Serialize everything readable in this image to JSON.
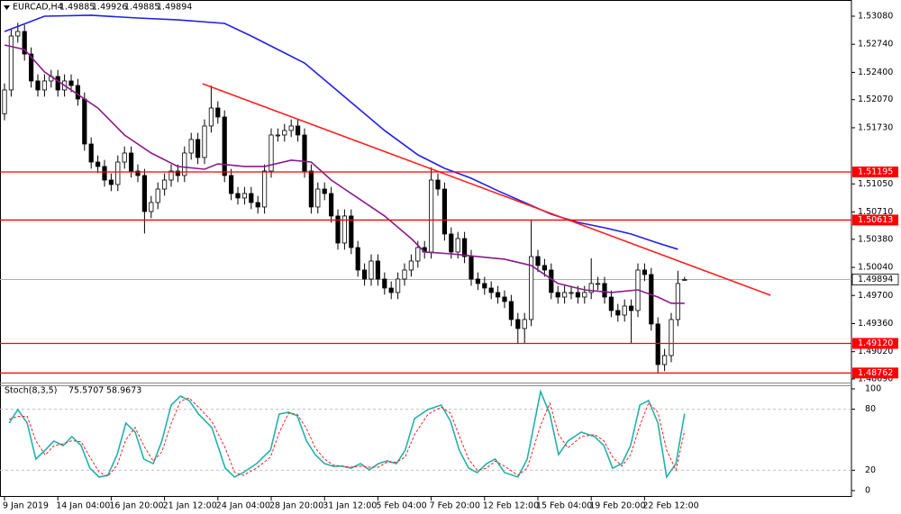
{
  "chart_data": [
    {
      "type": "candlestick",
      "title": "EURCAD,H4",
      "categories": [
        "9 Jan 2019",
        null,
        null,
        null,
        null,
        null,
        null,
        null,
        "14 Jan 04:00",
        null,
        null,
        null,
        null,
        null,
        null,
        null,
        "16 Jan 20:00",
        null,
        null,
        null,
        null,
        null,
        null,
        null,
        "21 Jan 12:00",
        null,
        null,
        null,
        null,
        null,
        null,
        null,
        "24 Jan 04:00",
        null,
        null,
        null,
        null,
        null,
        null,
        null,
        "28 Jan 20:00",
        null,
        null,
        null,
        null,
        null,
        null,
        null,
        "31 Jan 12:00",
        null,
        null,
        null,
        null,
        null,
        null,
        null,
        "5 Feb 04:00",
        null,
        null,
        null,
        null,
        null,
        null,
        null,
        "7 Feb 20:00",
        null,
        null,
        null,
        null,
        null,
        null,
        null,
        "12 Feb 12:00",
        null,
        null,
        null,
        null,
        null,
        null,
        null,
        "15 Feb 04:00",
        null,
        null,
        null,
        null,
        null,
        null,
        null,
        "19 Feb 20:00",
        null,
        null,
        null,
        null,
        null,
        null,
        null,
        "22 Feb 12:00",
        null,
        null,
        null,
        null,
        null,
        null
      ],
      "open": [
        1.519,
        1.52187,
        1.5284,
        1.52895,
        1.52622,
        1.52296,
        1.52187,
        1.52296,
        1.5235,
        1.52187,
        1.52296,
        1.52241,
        1.52078,
        1.51533,
        1.51315,
        1.51261,
        1.51097,
        1.51043,
        1.51315,
        1.51424,
        1.51206,
        1.51152,
        1.50716,
        1.50825,
        1.50988,
        1.51097,
        1.51206,
        1.51152,
        1.51424,
        1.51588,
        1.5137,
        1.51751,
        1.51969,
        1.5186,
        1.51152,
        1.50934,
        1.5088,
        1.50934,
        1.50825,
        1.50771,
        1.51206,
        1.51642,
        1.51642,
        1.51697,
        1.51751,
        1.51642,
        1.51206,
        1.50771,
        1.50988,
        1.50934,
        1.50662,
        1.50335,
        1.50662,
        1.5028,
        1.50008,
        1.49899,
        1.50117,
        1.49899,
        1.4979,
        1.49736,
        1.49899,
        1.50008,
        1.50117,
        1.5028,
        1.50226,
        1.51097,
        1.50988,
        1.50444,
        1.50226,
        1.50389,
        1.50171,
        1.49899,
        1.49845,
        1.4979,
        1.49736,
        1.49681,
        1.49627,
        1.49409,
        1.493,
        1.49409,
        1.50171,
        1.50063,
        1.50008,
        1.49736,
        1.49681,
        1.49736,
        1.49736,
        1.49681,
        1.49736,
        1.49845,
        1.49845,
        1.49681,
        1.49518,
        1.49463,
        1.49572,
        1.49518,
        1.50008,
        1.49954,
        1.49355,
        1.48864,
        1.48973,
        1.49409,
        1.49885
      ],
      "high": [
        1.52267,
        1.5292,
        1.53,
        1.52975,
        1.52702,
        1.52376,
        1.52376,
        1.5243,
        1.5243,
        1.52376,
        1.52376,
        1.52321,
        1.52158,
        1.51613,
        1.51395,
        1.51341,
        1.51177,
        1.51395,
        1.51504,
        1.51504,
        1.51286,
        1.51232,
        1.50905,
        1.51068,
        1.51177,
        1.51286,
        1.51286,
        1.51504,
        1.51668,
        1.51668,
        1.51831,
        1.5224,
        1.52049,
        1.5194,
        1.51232,
        1.51014,
        1.51014,
        1.51014,
        1.50905,
        1.51286,
        1.51722,
        1.51722,
        1.51777,
        1.51831,
        1.51831,
        1.51722,
        1.51286,
        1.51068,
        1.51068,
        1.51014,
        1.50742,
        1.50742,
        1.50742,
        1.5036,
        1.50088,
        1.50197,
        1.50197,
        1.49979,
        1.4987,
        1.49979,
        1.50088,
        1.50197,
        1.5036,
        1.5036,
        1.5125,
        1.51177,
        1.51068,
        1.50524,
        1.50469,
        1.50469,
        1.50251,
        1.49979,
        1.49925,
        1.4987,
        1.49816,
        1.49761,
        1.49707,
        1.49489,
        1.49489,
        1.5061,
        1.50251,
        1.50143,
        1.50088,
        1.49816,
        1.49816,
        1.49816,
        1.49816,
        1.49816,
        1.5015,
        1.49925,
        1.49925,
        1.49761,
        1.49598,
        1.49652,
        1.49652,
        1.50088,
        1.50088,
        1.50034,
        1.49435,
        1.49053,
        1.49489,
        1.5,
        1.49926
      ],
      "low": [
        1.5182,
        1.52107,
        1.5276,
        1.52542,
        1.52216,
        1.52107,
        1.52107,
        1.52216,
        1.52107,
        1.52107,
        1.52161,
        1.51998,
        1.51453,
        1.51235,
        1.51181,
        1.51017,
        1.50963,
        1.50963,
        1.51235,
        1.51126,
        1.51072,
        1.5045,
        1.50636,
        1.50745,
        1.50908,
        1.51017,
        1.51072,
        1.51072,
        1.51344,
        1.5129,
        1.5129,
        1.51671,
        1.5178,
        1.51072,
        1.50854,
        1.508,
        1.508,
        1.50745,
        1.50691,
        1.50691,
        1.51126,
        1.51562,
        1.51562,
        1.51617,
        1.51562,
        1.51126,
        1.50691,
        1.50691,
        1.50854,
        1.50582,
        1.50255,
        1.50255,
        1.502,
        1.49928,
        1.49819,
        1.49819,
        1.49819,
        1.4971,
        1.49656,
        1.49656,
        1.49819,
        1.49928,
        1.50037,
        1.50146,
        1.50146,
        1.50908,
        1.50364,
        1.50146,
        1.50146,
        1.50091,
        1.49819,
        1.49765,
        1.4971,
        1.49656,
        1.49601,
        1.49547,
        1.49329,
        1.4912,
        1.4912,
        1.49329,
        1.49983,
        1.49928,
        1.49656,
        1.49601,
        1.49601,
        1.49656,
        1.49601,
        1.49601,
        1.49656,
        1.49765,
        1.49601,
        1.49438,
        1.49383,
        1.49383,
        1.4912,
        1.49438,
        1.49874,
        1.49275,
        1.48762,
        1.48784,
        1.48893,
        1.49329,
        1.49885
      ],
      "close": [
        1.52187,
        1.5284,
        1.52895,
        1.52622,
        1.52296,
        1.52187,
        1.52296,
        1.5235,
        1.52187,
        1.52296,
        1.52241,
        1.52078,
        1.51533,
        1.51315,
        1.51261,
        1.51097,
        1.51043,
        1.51315,
        1.51424,
        1.51206,
        1.51152,
        1.50716,
        1.50825,
        1.50988,
        1.51097,
        1.51206,
        1.51152,
        1.51424,
        1.51588,
        1.5137,
        1.51751,
        1.51969,
        1.5186,
        1.51152,
        1.50934,
        1.5088,
        1.50934,
        1.50825,
        1.50771,
        1.51206,
        1.51642,
        1.51642,
        1.51697,
        1.51751,
        1.51642,
        1.51206,
        1.50771,
        1.50988,
        1.50934,
        1.50662,
        1.50335,
        1.50662,
        1.5028,
        1.50008,
        1.49899,
        1.50117,
        1.49899,
        1.4979,
        1.49736,
        1.49899,
        1.50008,
        1.50117,
        1.5028,
        1.50226,
        1.51097,
        1.50988,
        1.50444,
        1.50226,
        1.50389,
        1.50171,
        1.49899,
        1.49845,
        1.4979,
        1.49736,
        1.49681,
        1.49627,
        1.49409,
        1.493,
        1.49409,
        1.50171,
        1.50063,
        1.50008,
        1.49736,
        1.49681,
        1.49736,
        1.49736,
        1.49681,
        1.49736,
        1.49845,
        1.49845,
        1.49681,
        1.49518,
        1.49463,
        1.49572,
        1.49518,
        1.50008,
        1.49954,
        1.49355,
        1.48864,
        1.48973,
        1.49409,
        1.49845,
        1.49894
      ],
      "series": [
        {
          "color": "#2020e8",
          "x": [
            0,
            6,
            13,
            20,
            26,
            33,
            37,
            41,
            45,
            49,
            53,
            57,
            62,
            66,
            70,
            74,
            78,
            82,
            86,
            90,
            94,
            98,
            101
          ],
          "values": [
            1.52895,
            1.5308,
            1.53091,
            1.53058,
            1.53036,
            1.52993,
            1.5284,
            1.52677,
            1.52513,
            1.52241,
            1.51969,
            1.51697,
            1.51402,
            1.51239,
            1.51119,
            1.50967,
            1.50825,
            1.50683,
            1.50585,
            1.5052,
            1.50444,
            1.50335,
            1.50259
          ]
        },
        {
          "color": "#8b1a8b",
          "x": [
            0,
            3,
            6,
            10,
            14,
            18,
            22,
            26,
            30,
            32,
            36,
            39,
            43,
            46,
            49,
            53,
            57,
            61,
            63,
            67,
            71,
            75,
            79,
            83,
            87,
            91,
            95,
            98,
            100,
            102
          ],
          "values": [
            1.52731,
            1.52677,
            1.52405,
            1.52187,
            1.51969,
            1.51642,
            1.51424,
            1.51261,
            1.51228,
            1.51293,
            1.51261,
            1.51261,
            1.51337,
            1.51315,
            1.51097,
            1.5088,
            1.50662,
            1.50389,
            1.50226,
            1.50204,
            1.50171,
            1.50139,
            1.50063,
            1.49845,
            1.49768,
            1.49736,
            1.49768,
            1.49681,
            1.49605,
            1.49605
          ]
        },
        {
          "color": "#ff2020",
          "x": [
            29.7,
            114.9
          ],
          "values": [
            1.52263,
            1.49703
          ]
        }
      ],
      "levels": [
        1.51195,
        1.50613,
        {
          "value": 1.4912,
          "label": "1.49120"
        },
        1.48762
      ],
      "level_color": "#ff0000",
      "ylim": [
        1.48646,
        1.53276
      ],
      "yticks": [
        {
          "value": 1.5308,
          "label": "1.53080"
        },
        {
          "value": 1.5274,
          "label": "1.52740"
        },
        {
          "value": 1.524,
          "label": "1.52400"
        },
        {
          "value": 1.5207,
          "label": "1.52070"
        },
        {
          "value": 1.5173,
          "label": "1.51730"
        },
        {
          "value": 1.5105,
          "label": "1.51050"
        },
        {
          "value": 1.5071,
          "label": "1.50710"
        },
        {
          "value": 1.5038,
          "label": "1.50380"
        },
        {
          "value": 1.5004,
          "label": "1.50040"
        },
        {
          "value": 1.497,
          "label": "1.49700"
        },
        {
          "value": 1.4936,
          "label": "1.49360"
        },
        {
          "value": 1.4902,
          "label": "1.49020"
        },
        {
          "value": 1.4869,
          "label": "1.48690"
        }
      ]
    },
    {
      "type": "line",
      "title": "Stoch(8,3,5)",
      "x": [
        0.7,
        2.0,
        3.4,
        4.7,
        6.1,
        7.4,
        8.8,
        10.1,
        11.5,
        12.8,
        14.2,
        15.5,
        16.9,
        18.2,
        19.6,
        20.9,
        22.3,
        23.6,
        25.0,
        26.4,
        27.7,
        29.1,
        31.1,
        33.1,
        34.5,
        35.8,
        37.8,
        39.9,
        41.2,
        42.6,
        43.9,
        45.3,
        46.6,
        48.0,
        49.3,
        50.7,
        52.0,
        53.4,
        54.7,
        56.1,
        57.4,
        58.8,
        60.1,
        61.5,
        63.5,
        65.5,
        66.9,
        68.2,
        69.6,
        70.9,
        72.3,
        73.6,
        75.0,
        77.0,
        78.4,
        80.4,
        81.8,
        83.1,
        84.5,
        86.5,
        88.5,
        89.9,
        91.2,
        92.6,
        93.9,
        95.3,
        96.6,
        98.0,
        99.3,
        100.7,
        102.0
      ],
      "series": [
        {
          "color": "#20b2aa",
          "values": [
            66.4,
            79.6,
            66.4,
            31.0,
            39.8,
            48.7,
            44.2,
            53.1,
            44.2,
            22.1,
            13.3,
            15.0,
            35.4,
            66.4,
            57.5,
            31.0,
            26.5,
            48.7,
            84.1,
            92.9,
            88.5,
            75.2,
            61.9,
            22.1,
            13.3,
            17.7,
            26.5,
            39.8,
            75.2,
            77.0,
            73.5,
            48.7,
            35.4,
            26.5,
            23.9,
            23.9,
            22.1,
            26.5,
            20.4,
            26.5,
            29.2,
            26.5,
            39.8,
            70.8,
            79.6,
            84.1,
            68.1,
            39.8,
            22.1,
            17.7,
            26.5,
            31.0,
            17.7,
            13.3,
            31.0,
            97.3,
            75.2,
            35.4,
            48.7,
            57.5,
            53.1,
            44.2,
            22.1,
            26.5,
            44.2,
            84.1,
            88.5,
            66.4,
            13.3,
            26.5,
            75.5707
          ]
        },
        {
          "color": "#ff2020",
          "dashed": true,
          "values": [
            70,
            73,
            73,
            49,
            35,
            44,
            46,
            49,
            48,
            33,
            18,
            14,
            25,
            50,
            62,
            44,
            29,
            38,
            66,
            88,
            91,
            82,
            68,
            42,
            18,
            15,
            22,
            33,
            57,
            76,
            75,
            61,
            42,
            31,
            25,
            24,
            23,
            24,
            23,
            23,
            28,
            28,
            33,
            55,
            75,
            82,
            76,
            54,
            31,
            20,
            22,
            29,
            24,
            15,
            22,
            64,
            86,
            55,
            42,
            53,
            55,
            49,
            33,
            24,
            35,
            64,
            86,
            77,
            40,
            20,
            58.9673
          ]
        }
      ],
      "levels": [
        80,
        20
      ],
      "ylim": [
        -6.2,
        103.5
      ],
      "yticks": [
        100,
        80,
        20,
        0
      ]
    }
  ]
}
